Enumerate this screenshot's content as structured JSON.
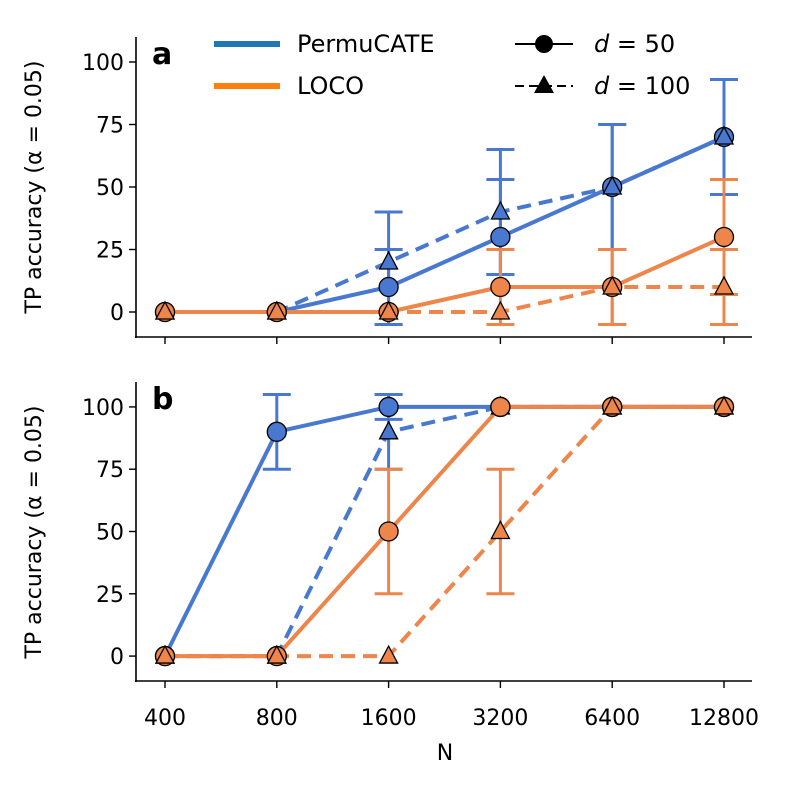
{
  "chart_data": [
    {
      "panel": "a",
      "type": "line",
      "ylabel": "TP accuracy (α = 0.05)",
      "xlabel": "",
      "x": [
        400,
        800,
        1600,
        3200,
        6400,
        12800
      ],
      "x_tick_labels": [
        "400",
        "800",
        "1600",
        "3200",
        "6400",
        "12800"
      ],
      "x_scale": "log2",
      "ylim": [
        -10,
        110
      ],
      "y_ticks": [
        0,
        25,
        50,
        75,
        100
      ],
      "y_tick_labels": [
        "0",
        "25",
        "50",
        "75",
        "100"
      ],
      "series": [
        {
          "name": "PermuCATE",
          "d": "d = 50",
          "style": "solid",
          "marker": "circle",
          "color": "#4878cf",
          "values": [
            0,
            0,
            10,
            30,
            50,
            70
          ],
          "err": [
            null,
            null,
            [
              -5,
              25
            ],
            [
              15,
              53
            ],
            [
              25,
              75
            ],
            [
              47,
              93
            ]
          ]
        },
        {
          "name": "PermuCATE",
          "d": "d = 100",
          "style": "dashed",
          "marker": "triangle",
          "color": "#4878cf",
          "values": [
            0,
            0,
            20,
            40,
            50,
            70
          ],
          "err": [
            null,
            null,
            [
              -5,
              40
            ],
            [
              15,
              65
            ],
            [
              25,
              75
            ],
            [
              47,
              93
            ]
          ]
        },
        {
          "name": "LOCO",
          "d": "d = 50",
          "style": "solid",
          "marker": "circle",
          "color": "#ee854a",
          "values": [
            0,
            0,
            0,
            10,
            10,
            30
          ],
          "err": [
            null,
            null,
            null,
            [
              -5,
              25
            ],
            [
              -5,
              25
            ],
            [
              7,
              53
            ]
          ]
        },
        {
          "name": "LOCO",
          "d": "d = 100",
          "style": "dashed",
          "marker": "triangle",
          "color": "#ee854a",
          "values": [
            0,
            0,
            0,
            0,
            10,
            10
          ],
          "err": [
            null,
            null,
            null,
            null,
            [
              -5,
              25
            ],
            [
              -5,
              25
            ]
          ]
        }
      ]
    },
    {
      "panel": "b",
      "type": "line",
      "ylabel": "TP accuracy (α = 0.05)",
      "xlabel": "N",
      "x": [
        400,
        800,
        1600,
        3200,
        6400,
        12800
      ],
      "x_tick_labels": [
        "400",
        "800",
        "1600",
        "3200",
        "6400",
        "12800"
      ],
      "x_scale": "log2",
      "ylim": [
        -10,
        110
      ],
      "y_ticks": [
        0,
        25,
        50,
        75,
        100
      ],
      "y_tick_labels": [
        "0",
        "25",
        "50",
        "75",
        "100"
      ],
      "series": [
        {
          "name": "PermuCATE",
          "d": "d = 50",
          "style": "solid",
          "marker": "circle",
          "color": "#4878cf",
          "values": [
            0,
            90,
            100,
            100,
            100,
            100
          ],
          "err": [
            null,
            [
              75,
              105
            ],
            [
              95,
              105
            ],
            null,
            null,
            null
          ]
        },
        {
          "name": "PermuCATE",
          "d": "d = 100",
          "style": "dashed",
          "marker": "triangle",
          "color": "#4878cf",
          "values": [
            0,
            0,
            90,
            100,
            100,
            100
          ],
          "err": [
            null,
            null,
            [
              75,
              105
            ],
            null,
            null,
            null
          ]
        },
        {
          "name": "LOCO",
          "d": "d = 50",
          "style": "solid",
          "marker": "circle",
          "color": "#ee854a",
          "values": [
            0,
            0,
            50,
            100,
            100,
            100
          ],
          "err": [
            null,
            null,
            [
              25,
              75
            ],
            null,
            null,
            null
          ]
        },
        {
          "name": "LOCO",
          "d": "d = 100",
          "style": "dashed",
          "marker": "triangle",
          "color": "#ee854a",
          "values": [
            0,
            0,
            0,
            50,
            100,
            100
          ],
          "err": [
            null,
            null,
            null,
            [
              25,
              75
            ],
            null,
            null
          ]
        }
      ]
    }
  ],
  "legend": {
    "placement": "top",
    "methods": [
      {
        "label": "PermuCATE",
        "color": "#1f77b4"
      },
      {
        "label": "LOCO",
        "color": "#ff7f0e"
      }
    ],
    "dims": [
      {
        "prefix": "d",
        "value": " = 50",
        "marker": "circle",
        "style": "solid"
      },
      {
        "prefix": "d",
        "value": " = 100",
        "marker": "triangle",
        "style": "dashed"
      }
    ]
  }
}
